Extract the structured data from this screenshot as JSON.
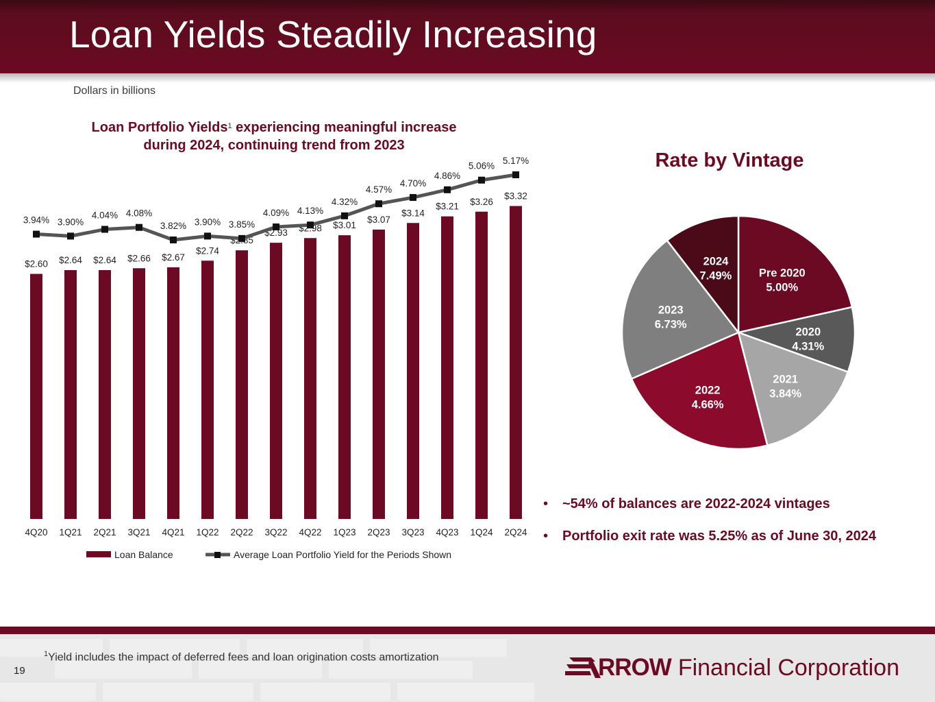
{
  "header": {
    "title": "Loan Yields Steadily Increasing"
  },
  "units_note": "Dollars in billions",
  "chart_title": {
    "line1_a": "Loan Portfolio Yields",
    "footnote_ref": "1",
    "line1_b": " experiencing meaningful increase",
    "line2": "during 2024, continuing trend from 2023"
  },
  "colors": {
    "brand": "#6b0a22",
    "line": "#555555"
  },
  "chart_data": [
    {
      "type": "bar",
      "title": "Loan Portfolio Yields experiencing meaningful increase during 2024, continuing trend from 2023",
      "categories": [
        "4Q20",
        "1Q21",
        "2Q21",
        "3Q21",
        "4Q21",
        "1Q22",
        "2Q22",
        "3Q22",
        "4Q22",
        "1Q23",
        "2Q23",
        "3Q23",
        "4Q23",
        "1Q24",
        "2Q24"
      ],
      "series": [
        {
          "name": "Loan Balance",
          "kind": "bar",
          "values": [
            2.6,
            2.64,
            2.64,
            2.66,
            2.67,
            2.74,
            2.85,
            2.93,
            2.98,
            3.01,
            3.07,
            3.14,
            3.21,
            3.26,
            3.32
          ],
          "labels": [
            "$2.60",
            "$2.64",
            "$2.64",
            "$2.66",
            "$2.67",
            "$2.74",
            "$2.85",
            "$2.93",
            "$2.98",
            "$3.01",
            "$3.07",
            "$3.14",
            "$3.21",
            "$3.26",
            "$3.32"
          ]
        },
        {
          "name": "Average Loan Portfolio Yield for the Periods Shown",
          "kind": "line",
          "values": [
            3.94,
            3.9,
            4.04,
            4.08,
            3.82,
            3.9,
            3.85,
            4.09,
            4.13,
            4.32,
            4.57,
            4.7,
            4.86,
            5.06,
            5.17
          ],
          "labels": [
            "3.94%",
            "3.90%",
            "4.04%",
            "4.08%",
            "3.82%",
            "3.90%",
            "3.85%",
            "4.09%",
            "4.13%",
            "4.32%",
            "4.57%",
            "4.70%",
            "4.86%",
            "5.06%",
            "5.17%"
          ]
        }
      ],
      "xlabel": "",
      "ylabel": "",
      "bar_ylim": [
        0,
        3.36
      ],
      "line_ylim": [
        3.3,
        5.3
      ],
      "legend": "bottom"
    },
    {
      "type": "pie",
      "title": "Rate by Vintage",
      "slices": [
        {
          "label": "Pre 2020",
          "rate": "5.00%",
          "share": 0.215,
          "color": "#6b0a22"
        },
        {
          "label": "2020",
          "rate": "4.31%",
          "share": 0.09,
          "color": "#595959"
        },
        {
          "label": "2021",
          "rate": "3.84%",
          "share": 0.155,
          "color": "#a6a6a6"
        },
        {
          "label": "2022",
          "rate": "4.66%",
          "share": 0.225,
          "color": "#8c0a2c"
        },
        {
          "label": "2023",
          "rate": "6.73%",
          "share": 0.21,
          "color": "#7f7f7f"
        },
        {
          "label": "2024",
          "rate": "7.49%",
          "share": 0.105,
          "color": "#4a0a18"
        }
      ]
    }
  ],
  "bullets": [
    "~54% of balances are 2022-2024 vintages",
    "Portfolio exit rate was 5.25% as of June 30, 2024"
  ],
  "footer": {
    "page_number": "19",
    "footnote_sup": "1",
    "footnote_text": "Yield includes the impact of deferred fees and loan origination costs amortization",
    "logo_brand": "RROW",
    "logo_rest": "Financial Corporation"
  }
}
